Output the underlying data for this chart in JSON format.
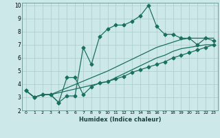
{
  "title": "",
  "xlabel": "Humidex (Indice chaleur)",
  "background_color": "#cce8e8",
  "grid_color": "#b0d0d0",
  "line_color": "#1a7060",
  "xlim": [
    -0.5,
    23.5
  ],
  "ylim": [
    2,
    10.2
  ],
  "yticks": [
    2,
    3,
    4,
    5,
    6,
    7,
    8,
    9,
    10
  ],
  "xticks": [
    0,
    1,
    2,
    3,
    4,
    5,
    6,
    7,
    8,
    9,
    10,
    11,
    12,
    13,
    14,
    15,
    16,
    17,
    18,
    19,
    20,
    21,
    22,
    23
  ],
  "line1_x": [
    0,
    1,
    2,
    3,
    4,
    5,
    6,
    7,
    8,
    9,
    10,
    11,
    12,
    13,
    14,
    15,
    16,
    17,
    18,
    19,
    20,
    21,
    22,
    23
  ],
  "line1_y": [
    3.5,
    3.0,
    3.2,
    3.2,
    2.6,
    3.1,
    3.1,
    6.8,
    5.5,
    7.6,
    8.2,
    8.5,
    8.5,
    8.8,
    9.2,
    10.0,
    8.4,
    7.8,
    7.8,
    7.5,
    7.5,
    7.0,
    7.5,
    7.3
  ],
  "line2_x": [
    0,
    1,
    2,
    3,
    4,
    5,
    6,
    7,
    8,
    9,
    10,
    11,
    12,
    13,
    14,
    15,
    16,
    17,
    18,
    19,
    20,
    21,
    22,
    23
  ],
  "line2_y": [
    3.5,
    3.0,
    3.2,
    3.2,
    2.6,
    4.5,
    4.5,
    3.2,
    3.8,
    4.1,
    4.2,
    4.4,
    4.6,
    4.9,
    5.1,
    5.3,
    5.5,
    5.7,
    6.0,
    6.2,
    6.4,
    6.6,
    6.8,
    7.0
  ],
  "line3_x": [
    0,
    1,
    2,
    3,
    10,
    11,
    12,
    13,
    14,
    15,
    16,
    17,
    18,
    19,
    20,
    21,
    22,
    23
  ],
  "line3_y": [
    3.5,
    3.0,
    3.2,
    3.2,
    5.0,
    5.3,
    5.6,
    5.9,
    6.2,
    6.5,
    6.8,
    7.0,
    7.2,
    7.4,
    7.5,
    7.5,
    7.5,
    7.5
  ],
  "line4_x": [
    0,
    1,
    2,
    3,
    10,
    11,
    12,
    13,
    14,
    15,
    16,
    17,
    18,
    19,
    20,
    21,
    22,
    23
  ],
  "line4_y": [
    3.5,
    3.0,
    3.2,
    3.2,
    4.2,
    4.5,
    4.8,
    5.1,
    5.4,
    5.7,
    6.0,
    6.2,
    6.5,
    6.7,
    6.8,
    6.9,
    7.0,
    7.0
  ]
}
